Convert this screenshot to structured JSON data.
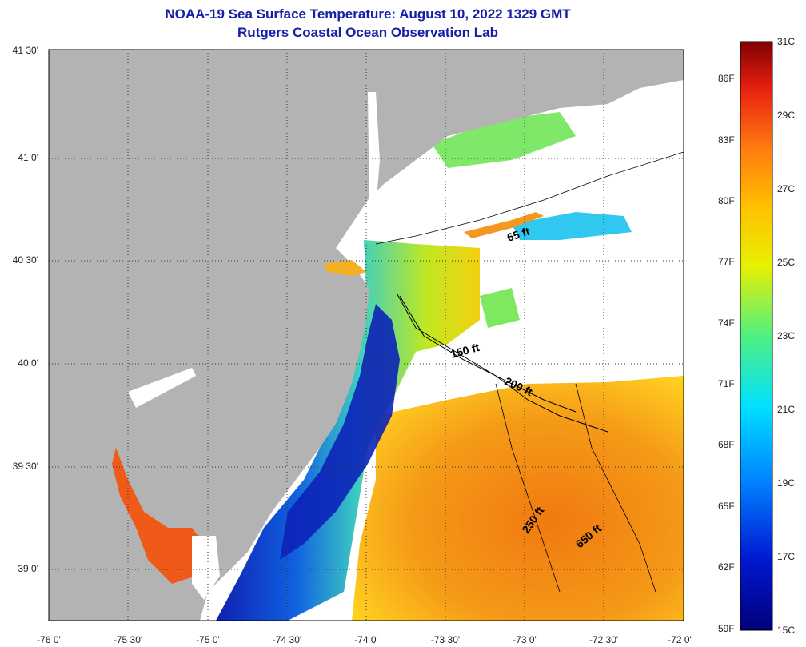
{
  "header": {
    "title_line1": "NOAA-19 Sea Surface Temperature:  August 10, 2022 1329 GMT",
    "title_line2": "Rutgers Coastal Ocean Observation Lab"
  },
  "axes": {
    "lat_labels": [
      "41 30'",
      "41 0'",
      "40 30'",
      "40 0'",
      "39 30'",
      "39 0'"
    ],
    "lon_labels": [
      "-76 0'",
      "-75 30'",
      "-75 0'",
      "-74 30'",
      "-74 0'",
      "-73 30'",
      "-73 0'",
      "-72 30'",
      "-72 0'"
    ]
  },
  "contours": {
    "c65": "65 ft",
    "c150": "150 ft",
    "c200": "200 ft",
    "c250": "250 ft",
    "c650": "650 ft"
  },
  "colorbar": {
    "f_labels": [
      "86F",
      "83F",
      "80F",
      "77F",
      "74F",
      "71F",
      "68F",
      "65F",
      "62F",
      "59F"
    ],
    "c_labels": [
      "31C",
      "29C",
      "27C",
      "25C",
      "23C",
      "21C",
      "19C",
      "17C",
      "15C"
    ]
  },
  "colors": {
    "title": "#1520a6",
    "land": "#b3b3b3",
    "cloud": "#ffffff",
    "cold": "#0a1aa0",
    "warm": "#ee7a10"
  }
}
